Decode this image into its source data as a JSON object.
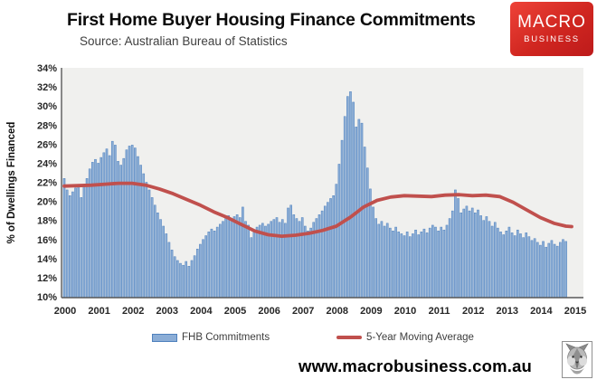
{
  "header": {
    "title": "First Home Buyer Housing Finance Commitments",
    "source": "Source: Australian Bureau of Statistics",
    "logo": {
      "line1": "MACRO",
      "line2": "BUSINESS",
      "bg_color": "#d02620"
    }
  },
  "legend": {
    "items": [
      {
        "label": "FHB Commitments",
        "swatch": "bar",
        "color": "#8badd6",
        "border": "#4f81bd"
      },
      {
        "label": "5-Year Moving Average",
        "swatch": "line",
        "color": "#c0504d"
      }
    ]
  },
  "footer": {
    "website": "www.macrobusiness.com.au",
    "wolf_icon": "wolf-sketch"
  },
  "chart_data": {
    "type": "bar",
    "title": "First Home Buyer Housing Finance Commitments",
    "subtitle": "Source: Australian Bureau of Statistics",
    "ylabel": "% of Dwellings Financed",
    "xlabel": "",
    "ylim": [
      10,
      34
    ],
    "ytick_step": 2,
    "ytick_suffix": "%",
    "grid": false,
    "plot_bg": "#f0f0ee",
    "axis_color": "#595959",
    "tick_color": "#262626",
    "legend_position": "bottom",
    "x_years": [
      2000,
      2001,
      2002,
      2003,
      2004,
      2005,
      2006,
      2007,
      2008,
      2009,
      2010,
      2011,
      2012,
      2013,
      2014,
      2015
    ],
    "start_month": "2000-01",
    "series": [
      {
        "name": "FHB Commitments",
        "type": "bar",
        "color": "#8badd6",
        "border_color": "#4f81bd",
        "monthly_values": [
          22.4,
          21.2,
          20.6,
          21.0,
          21.4,
          21.7,
          20.4,
          21.6,
          22.4,
          23.4,
          24.1,
          24.4,
          24.0,
          24.6,
          25.1,
          25.5,
          24.8,
          26.3,
          25.9,
          24.2,
          23.8,
          24.5,
          25.4,
          25.8,
          25.9,
          25.6,
          24.7,
          23.8,
          22.9,
          22.0,
          21.2,
          20.4,
          19.6,
          18.8,
          18.1,
          17.4,
          16.6,
          15.7,
          14.9,
          14.2,
          13.8,
          13.5,
          13.3,
          13.7,
          13.2,
          13.8,
          14.3,
          15.0,
          15.5,
          16.0,
          16.4,
          16.8,
          17.1,
          16.9,
          17.3,
          17.6,
          17.9,
          18.3,
          18.5,
          18.2,
          18.4,
          18.6,
          18.3,
          19.4,
          17.9,
          17.5,
          16.2,
          17.0,
          17.3,
          17.5,
          17.7,
          17.4,
          17.6,
          17.9,
          18.1,
          18.3,
          17.8,
          18.1,
          17.7,
          19.3,
          19.6,
          18.6,
          18.2,
          17.9,
          18.3,
          17.4,
          16.9,
          17.2,
          17.8,
          18.2,
          18.6,
          19.0,
          19.5,
          19.9,
          20.3,
          20.6,
          21.8,
          23.9,
          26.4,
          28.9,
          31.0,
          31.5,
          30.4,
          27.8,
          28.6,
          28.2,
          25.7,
          23.5,
          21.3,
          19.4,
          18.2,
          17.6,
          17.9,
          17.4,
          17.7,
          17.2,
          16.9,
          17.3,
          16.8,
          16.6,
          16.4,
          16.8,
          16.3,
          16.6,
          17.0,
          16.5,
          16.8,
          17.1,
          16.7,
          17.2,
          17.5,
          17.3,
          16.9,
          17.3,
          17.0,
          17.5,
          18.2,
          19.0,
          21.2,
          20.3,
          18.8,
          19.2,
          19.5,
          19.0,
          19.3,
          18.8,
          19.1,
          18.5,
          18.0,
          18.4,
          17.9,
          17.4,
          17.8,
          17.2,
          16.8,
          16.5,
          16.9,
          17.3,
          16.7,
          16.4,
          17.0,
          16.6,
          16.2,
          16.7,
          16.3,
          15.9,
          16.1,
          15.7,
          15.4,
          15.8,
          15.2,
          15.6,
          15.9,
          15.5,
          15.3,
          15.7,
          16.0,
          15.8
        ]
      },
      {
        "name": "5-Year Moving Average",
        "type": "line",
        "color": "#c0504d",
        "points": [
          [
            2000.0,
            21.6
          ],
          [
            2000.4,
            21.65
          ],
          [
            2000.8,
            21.7
          ],
          [
            2001.2,
            21.8
          ],
          [
            2001.6,
            21.9
          ],
          [
            2002.0,
            21.9
          ],
          [
            2002.4,
            21.7
          ],
          [
            2002.8,
            21.3
          ],
          [
            2003.2,
            20.8
          ],
          [
            2003.6,
            20.2
          ],
          [
            2004.0,
            19.6
          ],
          [
            2004.4,
            18.9
          ],
          [
            2004.8,
            18.3
          ],
          [
            2005.2,
            17.6
          ],
          [
            2005.6,
            16.9
          ],
          [
            2006.0,
            16.5
          ],
          [
            2006.4,
            16.35
          ],
          [
            2006.8,
            16.45
          ],
          [
            2007.2,
            16.65
          ],
          [
            2007.6,
            16.95
          ],
          [
            2008.0,
            17.4
          ],
          [
            2008.4,
            18.3
          ],
          [
            2008.8,
            19.4
          ],
          [
            2009.2,
            20.1
          ],
          [
            2009.6,
            20.45
          ],
          [
            2010.0,
            20.6
          ],
          [
            2010.4,
            20.55
          ],
          [
            2010.8,
            20.5
          ],
          [
            2011.2,
            20.65
          ],
          [
            2011.6,
            20.7
          ],
          [
            2012.0,
            20.6
          ],
          [
            2012.4,
            20.65
          ],
          [
            2012.8,
            20.5
          ],
          [
            2013.2,
            19.9
          ],
          [
            2013.6,
            19.1
          ],
          [
            2014.0,
            18.3
          ],
          [
            2014.4,
            17.7
          ],
          [
            2014.75,
            17.4
          ],
          [
            2014.92,
            17.35
          ]
        ]
      }
    ]
  }
}
